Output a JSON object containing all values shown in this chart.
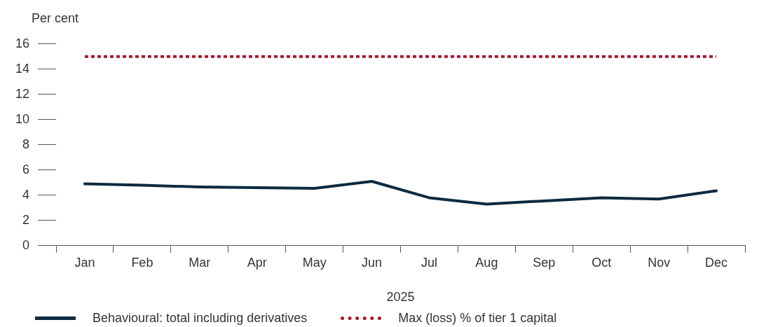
{
  "chart_data": {
    "type": "line",
    "ylabel": "Per cent",
    "xlabel": "2025",
    "categories": [
      "Jan",
      "Feb",
      "Mar",
      "Apr",
      "May",
      "Jun",
      "Jul",
      "Aug",
      "Sep",
      "Oct",
      "Nov",
      "Dec"
    ],
    "series": [
      {
        "name": "Behavioural: total including derivatives",
        "color": "#0d2a40",
        "values": [
          4.9,
          4.8,
          4.65,
          4.6,
          4.55,
          5.1,
          3.8,
          3.3,
          3.55,
          3.8,
          3.7,
          4.35
        ]
      }
    ],
    "ref_lines": [
      {
        "axis": "y",
        "value": 15,
        "label": "Max (loss) % of tier 1 capital",
        "color": "#a6192e",
        "line_style": "dotted"
      }
    ],
    "ylim": [
      0,
      16
    ],
    "yticks": [
      0,
      2,
      4,
      6,
      8,
      10,
      12,
      14,
      16
    ],
    "grid": false,
    "legend": "bottom",
    "marker": "none",
    "line_style": "solid"
  }
}
